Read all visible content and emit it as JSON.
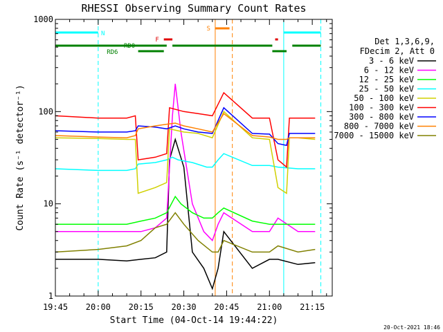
{
  "chart_data": {
    "type": "line",
    "title": "RHESSI Observing Summary Count Rates",
    "xlabel": "Start Time (04-Oct-14 19:44:22)",
    "ylabel": "Count Rate (s⁻¹ detector⁻¹)",
    "xlim": [
      "19:45",
      "21:22"
    ],
    "ylim": [
      1,
      1000
    ],
    "yscale": "log",
    "x_ticks": [
      "19:45",
      "20:00",
      "20:15",
      "20:30",
      "20:45",
      "21:00",
      "21:15"
    ],
    "y_ticks": [
      "1",
      "10",
      "100",
      "1000"
    ],
    "legend_header": [
      "Det 1,3,6,9,",
      "FDecim 2, Att 0"
    ],
    "legend_position": "right",
    "footer": "20-Oct-2021 18:46",
    "flags": [
      {
        "label": "N",
        "color": "#00ffff"
      },
      {
        "label": "S",
        "color": "#ff8000"
      },
      {
        "label": "F",
        "color": "#e00000"
      },
      {
        "label": "RD0",
        "color": "#008000"
      },
      {
        "label": "RD6",
        "color": "#008000"
      }
    ],
    "series": [
      {
        "name": "3 - 6 keV",
        "color": "#000000",
        "points": [
          [
            "19:45",
            2.5
          ],
          [
            "20:00",
            2.5
          ],
          [
            "20:10",
            2.4
          ],
          [
            "20:15",
            2.5
          ],
          [
            "20:20",
            2.6
          ],
          [
            "20:24",
            3
          ],
          [
            "20:25",
            30
          ],
          [
            "20:27",
            50
          ],
          [
            "20:30",
            25
          ],
          [
            "20:33",
            3
          ],
          [
            "20:37",
            2
          ],
          [
            "20:40",
            1.2
          ],
          [
            "20:42",
            2
          ],
          [
            "20:44",
            5
          ],
          [
            "20:54",
            2
          ],
          [
            "21:00",
            2.5
          ],
          [
            "21:03",
            2.5
          ],
          [
            "21:10",
            2.2
          ],
          [
            "21:16",
            2.3
          ]
        ]
      },
      {
        "name": "6 - 12 keV",
        "color": "#ff00ff",
        "points": [
          [
            "19:45",
            5
          ],
          [
            "20:00",
            5
          ],
          [
            "20:10",
            5
          ],
          [
            "20:15",
            5
          ],
          [
            "20:20",
            5.5
          ],
          [
            "20:24",
            7
          ],
          [
            "20:26",
            90
          ],
          [
            "20:27",
            200
          ],
          [
            "20:29",
            60
          ],
          [
            "20:33",
            10
          ],
          [
            "20:37",
            5
          ],
          [
            "20:40",
            4
          ],
          [
            "20:42",
            6
          ],
          [
            "20:44",
            8
          ],
          [
            "20:54",
            5
          ],
          [
            "21:00",
            5
          ],
          [
            "21:03",
            7
          ],
          [
            "21:10",
            5
          ],
          [
            "21:16",
            5
          ]
        ]
      },
      {
        "name": "12 - 25 keV",
        "color": "#00ff00",
        "points": [
          [
            "19:45",
            6
          ],
          [
            "20:00",
            6
          ],
          [
            "20:10",
            6
          ],
          [
            "20:15",
            6.5
          ],
          [
            "20:20",
            7
          ],
          [
            "20:24",
            8
          ],
          [
            "20:27",
            12
          ],
          [
            "20:29",
            10
          ],
          [
            "20:33",
            8
          ],
          [
            "20:37",
            7
          ],
          [
            "20:40",
            7
          ],
          [
            "20:42",
            8
          ],
          [
            "20:44",
            9
          ],
          [
            "20:54",
            6.5
          ],
          [
            "21:00",
            6
          ],
          [
            "21:03",
            6
          ],
          [
            "21:10",
            6
          ],
          [
            "21:16",
            6
          ]
        ]
      },
      {
        "name": "25 - 50 keV",
        "color": "#00ffff",
        "points": [
          [
            "19:45",
            24
          ],
          [
            "20:00",
            23
          ],
          [
            "20:10",
            23
          ],
          [
            "20:13",
            24
          ],
          [
            "20:14",
            27
          ],
          [
            "20:20",
            28
          ],
          [
            "20:24",
            30
          ],
          [
            "20:26",
            32
          ],
          [
            "20:28",
            30
          ],
          [
            "20:33",
            28
          ],
          [
            "20:38",
            25
          ],
          [
            "20:40",
            25
          ],
          [
            "20:42",
            30
          ],
          [
            "20:44",
            35
          ],
          [
            "20:54",
            26
          ],
          [
            "21:00",
            26
          ],
          [
            "21:03",
            25
          ],
          [
            "21:10",
            24
          ],
          [
            "21:16",
            24
          ]
        ]
      },
      {
        "name": "50 - 100 keV",
        "color": "#d0d000",
        "points": [
          [
            "19:45",
            52
          ],
          [
            "20:00",
            51
          ],
          [
            "20:10",
            50
          ],
          [
            "20:13",
            50
          ],
          [
            "20:14",
            13
          ],
          [
            "20:20",
            15
          ],
          [
            "20:24",
            17
          ],
          [
            "20:25",
            65
          ],
          [
            "20:30",
            60
          ],
          [
            "20:35",
            58
          ],
          [
            "20:40",
            52
          ],
          [
            "20:44",
            100
          ],
          [
            "20:54",
            52
          ],
          [
            "21:00",
            50
          ],
          [
            "21:03",
            15
          ],
          [
            "21:06",
            13
          ],
          [
            "21:07",
            52
          ],
          [
            "21:10",
            52
          ],
          [
            "21:16",
            50
          ]
        ]
      },
      {
        "name": "100 - 300 keV",
        "color": "#ff0000",
        "points": [
          [
            "19:45",
            90
          ],
          [
            "20:00",
            85
          ],
          [
            "20:10",
            85
          ],
          [
            "20:13",
            90
          ],
          [
            "20:14",
            30
          ],
          [
            "20:20",
            32
          ],
          [
            "20:24",
            35
          ],
          [
            "20:25",
            110
          ],
          [
            "20:30",
            100
          ],
          [
            "20:35",
            95
          ],
          [
            "20:40",
            90
          ],
          [
            "20:44",
            160
          ],
          [
            "20:54",
            85
          ],
          [
            "21:00",
            85
          ],
          [
            "21:03",
            30
          ],
          [
            "21:06",
            25
          ],
          [
            "21:07",
            85
          ],
          [
            "21:10",
            85
          ],
          [
            "21:16",
            85
          ]
        ]
      },
      {
        "name": "300 - 800 keV",
        "color": "#0000ff",
        "points": [
          [
            "19:45",
            62
          ],
          [
            "20:00",
            60
          ],
          [
            "20:10",
            60
          ],
          [
            "20:13",
            62
          ],
          [
            "20:14",
            70
          ],
          [
            "20:20",
            68
          ],
          [
            "20:24",
            65
          ],
          [
            "20:27",
            70
          ],
          [
            "20:30",
            65
          ],
          [
            "20:35",
            60
          ],
          [
            "20:40",
            58
          ],
          [
            "20:44",
            110
          ],
          [
            "20:54",
            58
          ],
          [
            "21:00",
            57
          ],
          [
            "21:03",
            45
          ],
          [
            "21:06",
            43
          ],
          [
            "21:07",
            58
          ],
          [
            "21:10",
            58
          ],
          [
            "21:16",
            58
          ]
        ]
      },
      {
        "name": "800 - 7000 keV",
        "color": "#ff8000",
        "points": [
          [
            "19:45",
            55
          ],
          [
            "20:00",
            53
          ],
          [
            "20:10",
            52
          ],
          [
            "20:13",
            55
          ],
          [
            "20:14",
            65
          ],
          [
            "20:20",
            70
          ],
          [
            "20:24",
            73
          ],
          [
            "20:27",
            75
          ],
          [
            "20:30",
            70
          ],
          [
            "20:35",
            65
          ],
          [
            "20:40",
            60
          ],
          [
            "20:44",
            95
          ],
          [
            "20:54",
            55
          ],
          [
            "21:00",
            53
          ],
          [
            "21:03",
            50
          ],
          [
            "21:06",
            50
          ],
          [
            "21:07",
            52
          ],
          [
            "21:10",
            52
          ],
          [
            "21:16",
            52
          ]
        ]
      },
      {
        "name": "7000 - 15000 keV",
        "color": "#808000",
        "points": [
          [
            "19:45",
            3
          ],
          [
            "20:00",
            3.2
          ],
          [
            "20:10",
            3.5
          ],
          [
            "20:15",
            4
          ],
          [
            "20:20",
            5.5
          ],
          [
            "20:24",
            6
          ],
          [
            "20:27",
            8
          ],
          [
            "20:30",
            6
          ],
          [
            "20:35",
            4
          ],
          [
            "20:40",
            3
          ],
          [
            "20:42",
            3
          ],
          [
            "20:44",
            4
          ],
          [
            "20:54",
            3
          ],
          [
            "21:00",
            3
          ],
          [
            "21:03",
            3.5
          ],
          [
            "21:10",
            3
          ],
          [
            "21:16",
            3.2
          ]
        ]
      }
    ]
  }
}
